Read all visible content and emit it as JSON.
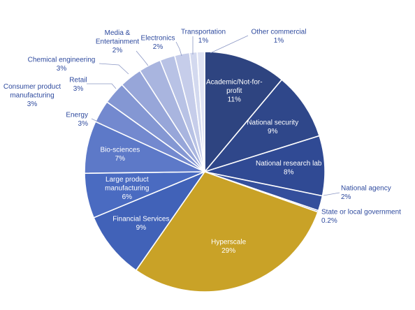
{
  "chart_data": {
    "type": "pie",
    "title": "",
    "start_angle_deg": 0,
    "direction": "clockwise",
    "slices": [
      {
        "name": "Academic/Not-for-profit",
        "value": 11,
        "label": "11%",
        "color": "#2e4480",
        "label_position": "inside"
      },
      {
        "name": "National security",
        "value": 9,
        "label": "9%",
        "color": "#2f478a",
        "label_position": "inside"
      },
      {
        "name": "National research lab",
        "value": 8,
        "label": "8%",
        "color": "#304a94",
        "label_position": "inside"
      },
      {
        "name": "National agency",
        "value": 2,
        "label": "2%",
        "color": "#344f9c",
        "label_position": "outside"
      },
      {
        "name": "State or local government",
        "value": 0.2,
        "label": "0.2%",
        "color": "#3a55a6",
        "label_position": "outside"
      },
      {
        "name": "Hyperscale",
        "value": 29,
        "label": "29%",
        "color": "#c9a227",
        "label_position": "inside"
      },
      {
        "name": "Financial Services",
        "value": 9,
        "label": "9%",
        "color": "#4162b8",
        "label_position": "inside"
      },
      {
        "name": "Large product manufacturing",
        "value": 6,
        "label": "6%",
        "color": "#4a6bc1",
        "label_position": "inside"
      },
      {
        "name": "Bio-sciences",
        "value": 7,
        "label": "7%",
        "color": "#5d79c8",
        "label_position": "inside"
      },
      {
        "name": "Energy",
        "value": 3,
        "label": "3%",
        "color": "#7389cf",
        "label_position": "outside"
      },
      {
        "name": "Consumer product manufacturing",
        "value": 3,
        "label": "3%",
        "color": "#8497d3",
        "label_position": "outside"
      },
      {
        "name": "Retail",
        "value": 3,
        "label": "3%",
        "color": "#97a6d9",
        "label_position": "outside"
      },
      {
        "name": "Chemical engineering",
        "value": 3,
        "label": "3%",
        "color": "#a9b5df",
        "label_position": "outside"
      },
      {
        "name": "Media & Entertainment",
        "value": 2,
        "label": "2%",
        "color": "#b8c2e5",
        "label_position": "outside"
      },
      {
        "name": "Electronics",
        "value": 2,
        "label": "2%",
        "color": "#c6cdea",
        "label_position": "outside"
      },
      {
        "name": "Transportation",
        "value": 1,
        "label": "1%",
        "color": "#d3d9ef",
        "label_position": "outside"
      },
      {
        "name": "Other commercial",
        "value": 1,
        "label": "1%",
        "color": "#dfe3f4",
        "label_position": "outside"
      }
    ]
  }
}
